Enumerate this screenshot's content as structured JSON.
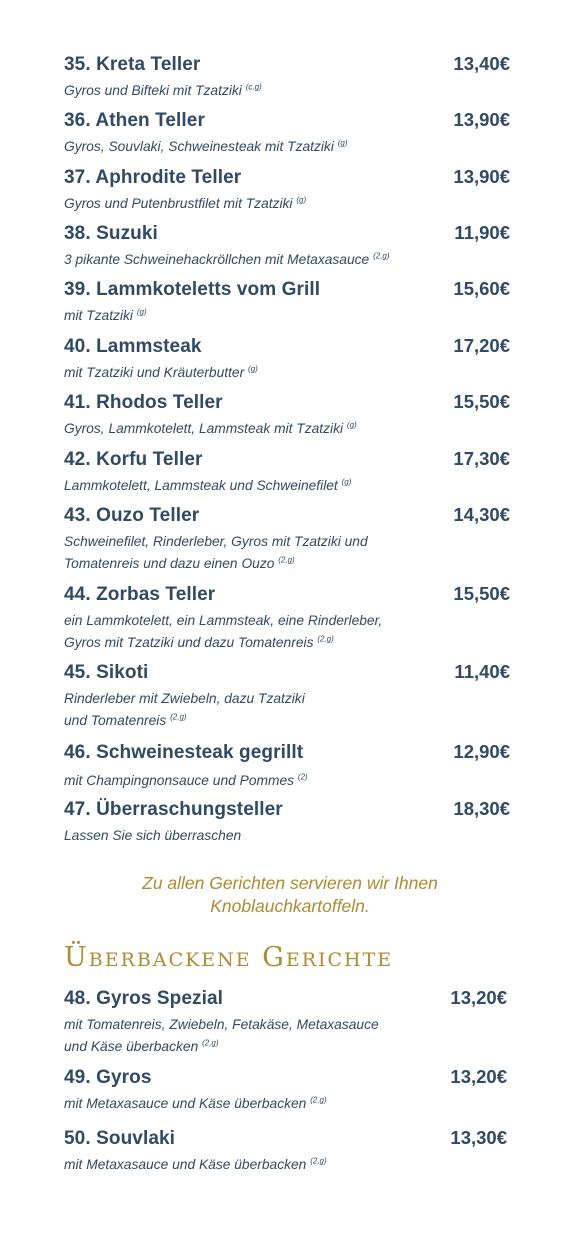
{
  "items": [
    {
      "name": "35. Kreta Teller",
      "price": "13,40€",
      "desc1": "Gyros und Bifteki mit Tzatziki",
      "sup": "(c,g)",
      "desc2": ""
    },
    {
      "name": "36. Athen Teller",
      "price": "13,90€",
      "desc1": "Gyros, Souvlaki, Schweinesteak mit Tzatziki",
      "sup": "(g)",
      "desc2": ""
    },
    {
      "name": "37. Aphrodite Teller",
      "price": "13,90€",
      "desc1": "Gyros und Putenbrustfilet mit Tzatziki",
      "sup": "(g)",
      "desc2": ""
    },
    {
      "name": "38. Suzuki",
      "price": "11,90€",
      "desc1": "3 pikante Schweinehackröllchen mit Metaxasauce",
      "sup": "(2,g)",
      "desc2": ""
    },
    {
      "name": "39. Lammkoteletts vom Grill",
      "price": "15,60€",
      "desc1": "mit Tzatziki",
      "sup": "(g)",
      "desc2": ""
    },
    {
      "name": "40. Lammsteak",
      "price": "17,20€",
      "desc1": "mit Tzatziki und Kräuterbutter",
      "sup": "(g)",
      "desc2": ""
    },
    {
      "name": "41. Rhodos Teller",
      "price": "15,50€",
      "desc1": "Gyros, Lammkotelett, Lammsteak mit Tzatziki",
      "sup": "(g)",
      "desc2": ""
    },
    {
      "name": "42. Korfu Teller",
      "price": "17,30€",
      "desc1": "Lammkotelett, Lammsteak und Schweinefilet",
      "sup": "(g)",
      "desc2": ""
    },
    {
      "name": "43. Ouzo Teller",
      "price": "14,30€",
      "desc1": "Schweinefilet, Rinderleber, Gyros mit Tzatziki und",
      "desc2": "Tomatenreis und dazu einen Ouzo",
      "sup": "(2,g)"
    },
    {
      "name": "44. Zorbas Teller",
      "price": "15,50€",
      "desc1": "ein Lammkotelett, ein Lammsteak, eine Rinderleber,",
      "desc2": "Gyros mit Tzatziki und dazu Tomatenreis",
      "sup": "(2,g)"
    },
    {
      "name": "45. Sikoti",
      "price": "11,40€",
      "desc1": "Rinderleber mit Zwiebeln, dazu Tzatziki",
      "desc2": "und Tomatenreis",
      "sup": "(2,g)"
    },
    {
      "name": "46. Schweinesteak gegrillt",
      "price": "12,90€",
      "desc1": "mit Champingnonsauce und Pommes",
      "sup": "(2)",
      "desc2": ""
    },
    {
      "name": "47. Überraschungsteller",
      "price": "18,30€",
      "desc1": "Lassen Sie sich überraschen",
      "sup": "",
      "desc2": ""
    }
  ],
  "note": {
    "line1": "Zu allen Gerichten servieren wir Ihnen",
    "line2": "Knoblauchkartoffeln."
  },
  "section2": {
    "title": "Überbackene Gerichte",
    "items": [
      {
        "name": "48. Gyros Spezial",
        "price": "13,20€",
        "desc1": "mit Tomatenreis, Zwiebeln, Fetakäse, Metaxasauce",
        "desc2": "und Käse überbacken",
        "sup": "(2,g)"
      },
      {
        "name": "49. Gyros",
        "price": "13,20€",
        "desc1": "mit Metaxasauce und Käse überbacken",
        "sup": "(2,g)",
        "desc2": ""
      },
      {
        "name": "50. Souvlaki",
        "price": "13,30€",
        "desc1": "mit Metaxasauce und Käse überbacken",
        "sup": "(2,g)",
        "desc2": ""
      }
    ]
  },
  "colors": {
    "text": "#2f4a66",
    "accent": "#b08a2e",
    "background": "#ffffff"
  }
}
